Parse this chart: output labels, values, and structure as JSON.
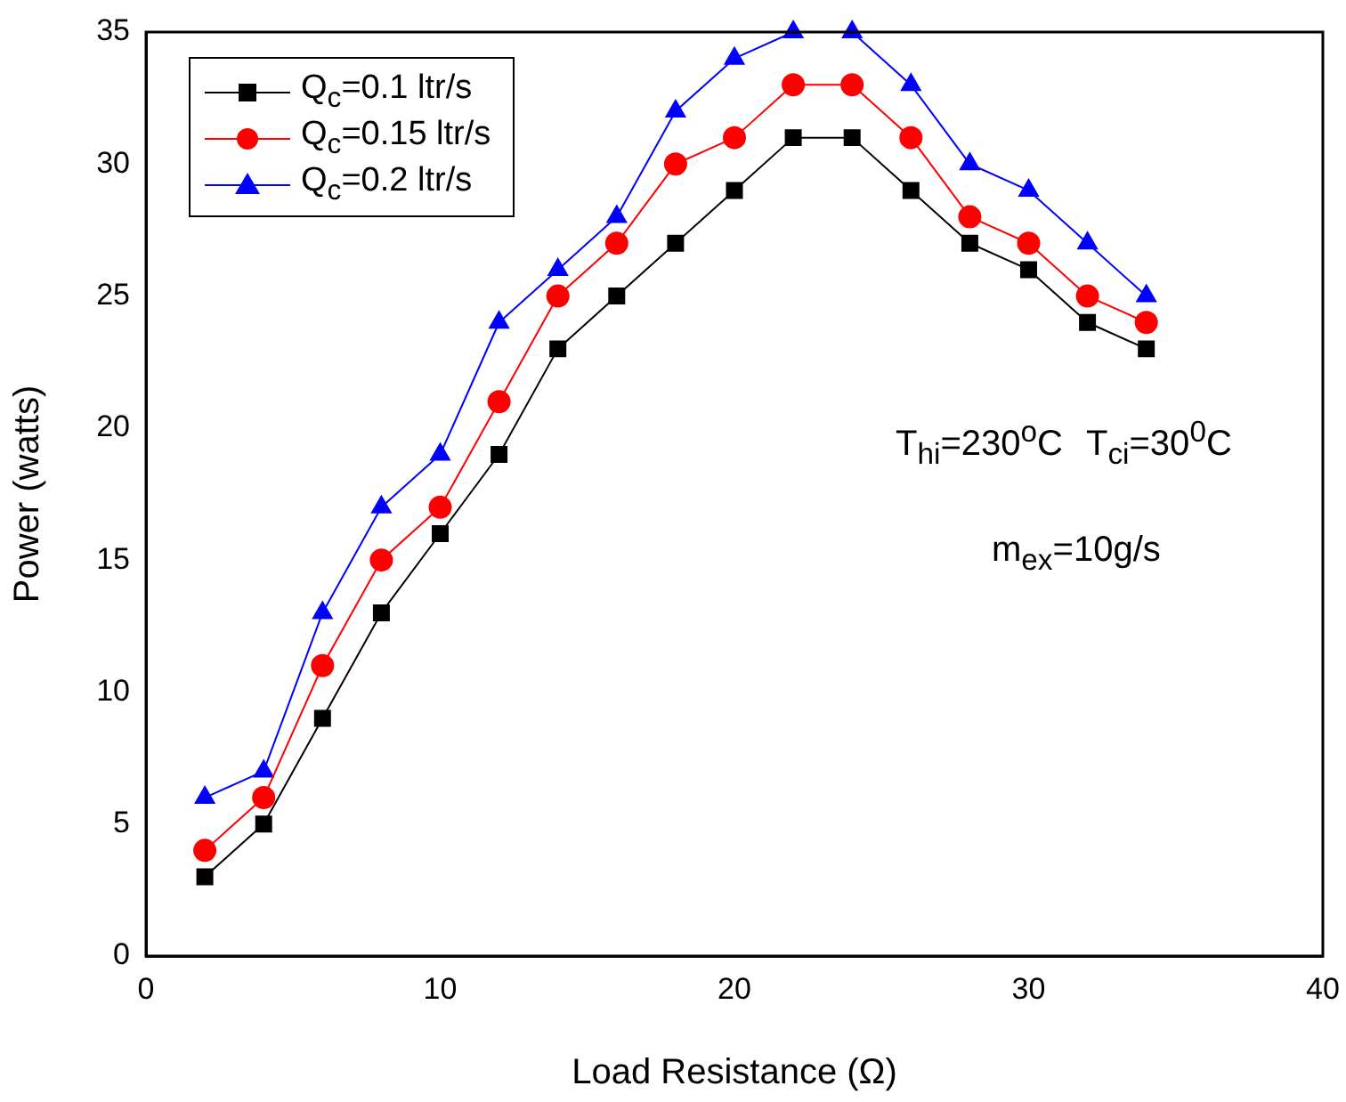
{
  "chart_data": {
    "type": "line",
    "xlabel": "Load Resistance (Ω)",
    "ylabel": "Power (watts)",
    "x": [
      2,
      4,
      6,
      8,
      10,
      12,
      14,
      16,
      18,
      20,
      22,
      24,
      26,
      28,
      30,
      32,
      34
    ],
    "series": [
      {
        "name": "Q$_{c}$=0.1 ltr/s",
        "color": "#000000",
        "marker": "square",
        "values": [
          3,
          5,
          9,
          13,
          16,
          19,
          23,
          25,
          27,
          29,
          31,
          31,
          29,
          27,
          26,
          24,
          23
        ]
      },
      {
        "name": "Q$_{c}$=0.15 ltr/s",
        "color": "#ff0000",
        "marker": "circle",
        "values": [
          4,
          6,
          11,
          15,
          17,
          21,
          25,
          27,
          30,
          31,
          33,
          33,
          31,
          28,
          27,
          25,
          24
        ]
      },
      {
        "name": "Q$_{c}$=0.2 ltr/s",
        "color": "#0000ff",
        "marker": "triangle",
        "values": [
          6,
          7,
          13,
          17,
          19,
          24,
          26,
          28,
          32,
          34,
          35,
          35,
          33,
          30,
          29,
          27,
          25
        ]
      }
    ],
    "xlim": [
      0,
      40
    ],
    "xticks": [
      0,
      10,
      20,
      30,
      40
    ],
    "ylim": [
      0,
      35
    ],
    "yticks": [
      0,
      5,
      10,
      15,
      20,
      25,
      30,
      35
    ],
    "grid": false,
    "legend": "top left",
    "line_style": "solid",
    "annotations": [
      "T$_{hi}$=230$^{o}$C",
      "T$_{ci}$=30$^{0}$C",
      "m$_{ex}$=10g/s"
    ]
  }
}
